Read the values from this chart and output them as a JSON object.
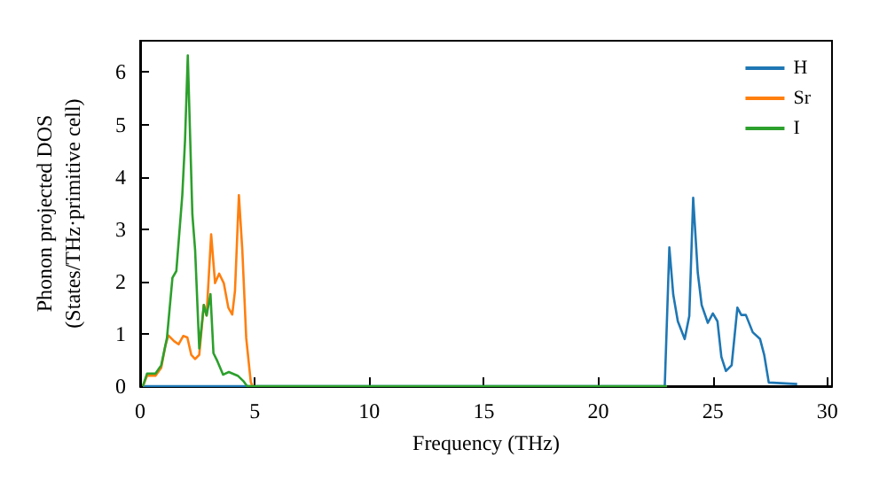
{
  "chart_data": {
    "type": "line",
    "xlabel": "Frequency (THz)",
    "ylabel": "Phonon projected DOS\n(States/THz·primitive cell)",
    "xlim": [
      0,
      30.2
    ],
    "ylim": [
      0,
      6.6
    ],
    "xticks": [
      0,
      5,
      10,
      15,
      20,
      25,
      30
    ],
    "yticks": [
      0,
      1,
      2,
      3,
      4,
      5,
      6
    ],
    "grid": false,
    "legend": "top right",
    "marker": "none",
    "line_style": "solid",
    "series": [
      {
        "name": "H",
        "color": "#1f77b4",
        "x": [
          0.12,
          5,
          10,
          15,
          20,
          22.9,
          23.1,
          23.27,
          23.47,
          23.77,
          23.97,
          24.14,
          24.34,
          24.51,
          24.78,
          25.0,
          25.2,
          25.37,
          25.57,
          25.82,
          26.07,
          26.24,
          26.44,
          26.74,
          27.06,
          27.24,
          27.44,
          28.68
        ],
        "values": [
          0,
          0,
          0,
          0,
          0,
          0,
          2.65,
          1.75,
          1.24,
          0.9,
          1.34,
          3.6,
          2.17,
          1.55,
          1.21,
          1.39,
          1.24,
          0.56,
          0.29,
          0.4,
          1.5,
          1.36,
          1.36,
          1.03,
          0.9,
          0.6,
          0.07,
          0.04
        ]
      },
      {
        "name": "Sr",
        "color": "#ff7f0e",
        "x": [
          0.12,
          0.3,
          0.67,
          0.92,
          1.1,
          1.23,
          1.48,
          1.68,
          1.88,
          2.06,
          2.23,
          2.4,
          2.58,
          2.78,
          2.9,
          3.1,
          3.27,
          3.45,
          3.65,
          3.85,
          4.02,
          4.14,
          4.31,
          4.46,
          4.63,
          4.83,
          4.9
        ],
        "values": [
          0,
          0.2,
          0.2,
          0.35,
          0.77,
          0.97,
          0.86,
          0.8,
          0.96,
          0.93,
          0.6,
          0.52,
          0.6,
          1.55,
          1.35,
          2.9,
          1.97,
          2.15,
          1.97,
          1.5,
          1.37,
          1.82,
          3.65,
          2.6,
          0.92,
          0.08,
          0
        ]
      },
      {
        "name": "I",
        "color": "#2ca02c",
        "x": [
          0.12,
          0.3,
          0.67,
          0.92,
          1.17,
          1.41,
          1.58,
          1.84,
          1.96,
          2.08,
          2.28,
          2.4,
          2.58,
          2.78,
          2.9,
          3.07,
          3.2,
          3.37,
          3.62,
          3.87,
          4.26,
          4.5,
          4.67,
          10,
          15,
          20,
          23
        ],
        "values": [
          0,
          0.24,
          0.24,
          0.4,
          0.92,
          2.07,
          2.2,
          3.65,
          4.7,
          6.32,
          3.28,
          2.6,
          0.72,
          1.55,
          1.35,
          1.76,
          0.63,
          0.48,
          0.22,
          0.27,
          0.2,
          0.1,
          0,
          0,
          0,
          0,
          0
        ]
      }
    ]
  }
}
